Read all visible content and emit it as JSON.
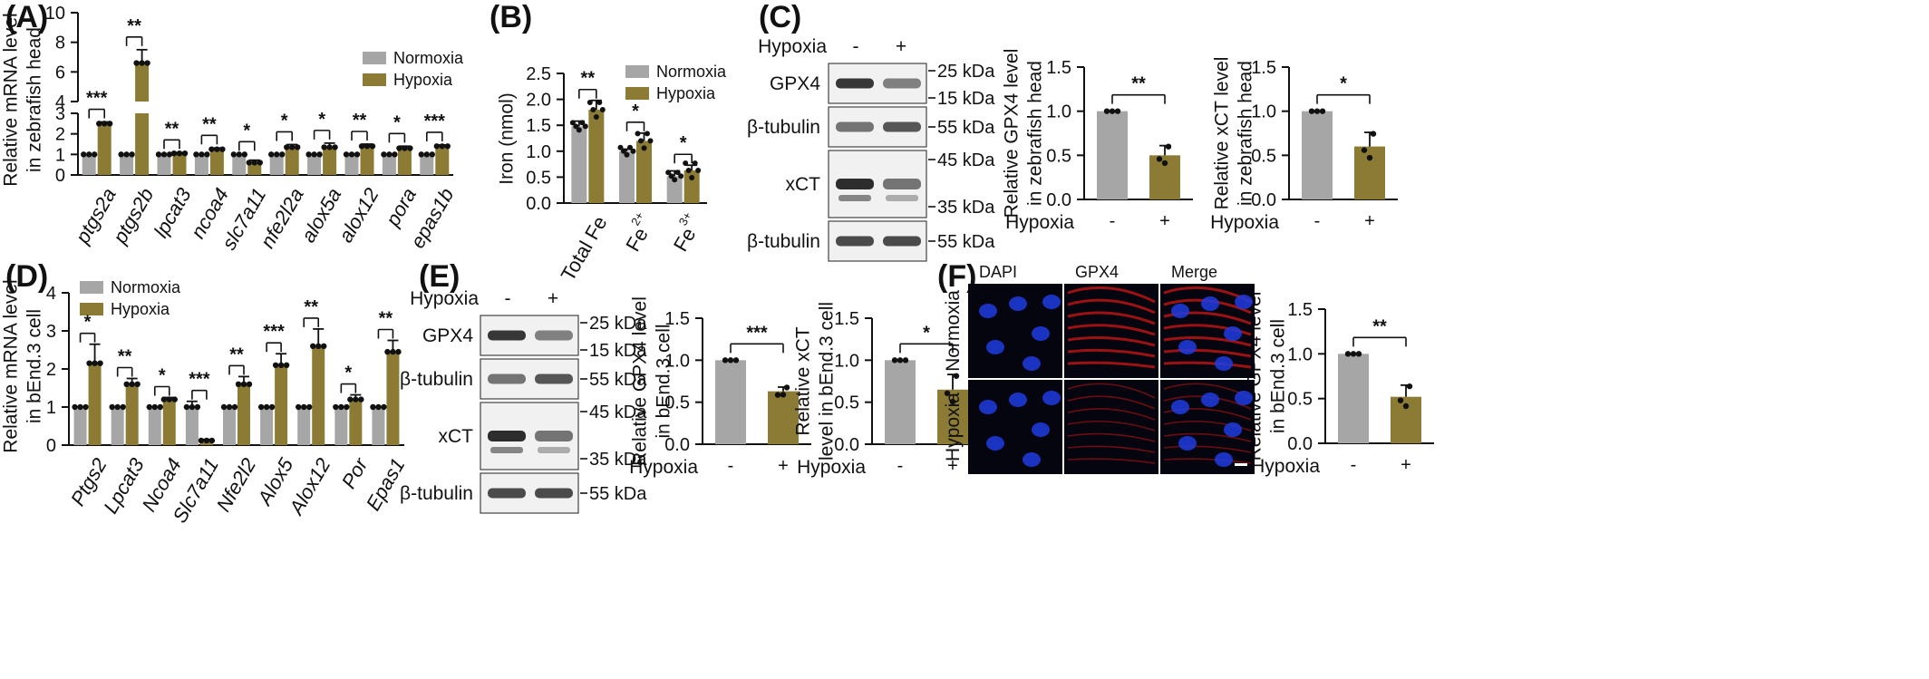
{
  "colors": {
    "normoxia": "#a6a6a6",
    "hypoxia": "#8c7b34",
    "dapi": "#1e5fd6",
    "gpx4": "#e01818",
    "merge": "#111111"
  },
  "chart_data": [
    {
      "id": "A",
      "type": "bar",
      "panel": "(A)",
      "ylabel": [
        "Relative mRNA level",
        "in zebrafish head"
      ],
      "axis_break": {
        "lower": [
          0,
          3
        ],
        "upper": [
          4,
          10
        ]
      },
      "lower_ticks": [
        "0",
        "1",
        "2",
        "3"
      ],
      "upper_ticks": [
        "4",
        "6",
        "8",
        "10"
      ],
      "categories": [
        "ptgs2a",
        "ptgs2b",
        "lpcat3",
        "ncoa4",
        "slc7a11",
        "nfe2l2a",
        "alox5a",
        "alox12",
        "pora",
        "epas1b"
      ],
      "series": [
        {
          "name": "Normoxia",
          "values": [
            1,
            1,
            1,
            1,
            1,
            1,
            1,
            1,
            1,
            1
          ],
          "errors": [
            0,
            0,
            0,
            0,
            0,
            0,
            0,
            0,
            0,
            0
          ]
        },
        {
          "name": "Hypoxia",
          "values": [
            2.5,
            6.6,
            1.05,
            1.25,
            0.6,
            1.35,
            1.35,
            1.4,
            1.3,
            1.4
          ],
          "errors": [
            0.08,
            0.9,
            0.04,
            0.06,
            0.12,
            0.13,
            0.2,
            0.1,
            0.1,
            0.06
          ]
        }
      ],
      "significance": [
        "***",
        "**",
        "**",
        "**",
        "*",
        "*",
        "*",
        "**",
        "*",
        "***"
      ],
      "legend": [
        "Normoxia",
        "Hypoxia"
      ]
    },
    {
      "id": "B",
      "type": "bar",
      "panel": "(B)",
      "ylabel": "Iron (nmol)",
      "ylim": [
        0,
        2.5
      ],
      "ticks": [
        "0.0",
        "0.5",
        "1.0",
        "1.5",
        "2.0",
        "2.5"
      ],
      "categories": [
        "Total Fe",
        "Fe2+",
        "Fe3+"
      ],
      "category_labels": [
        {
          "base": "Total Fe",
          "sup": ""
        },
        {
          "base": "Fe",
          "sup": "2+"
        },
        {
          "base": "Fe",
          "sup": "3+"
        }
      ],
      "series": [
        {
          "name": "Normoxia",
          "values": [
            1.48,
            1.0,
            0.52
          ],
          "errors": [
            0.1,
            0.04,
            0.1
          ]
        },
        {
          "name": "Hypoxia",
          "values": [
            1.8,
            1.2,
            0.63
          ],
          "errors": [
            0.18,
            0.15,
            0.1
          ]
        }
      ],
      "significance": [
        "**",
        "*",
        "*"
      ],
      "legend": [
        "Normoxia",
        "Hypoxia"
      ]
    },
    {
      "id": "C1",
      "type": "bar",
      "panel": "(C)",
      "ylabel": [
        "Relative GPX4 level",
        "in zebrafish head"
      ],
      "ylim": [
        0,
        1.5
      ],
      "ticks": [
        "0.0",
        "0.5",
        "1.0",
        "1.5"
      ],
      "categories": [
        "-",
        "+"
      ],
      "xlabel": "Hypoxia",
      "values": [
        1.0,
        0.5
      ],
      "errors": [
        0,
        0.11
      ],
      "significance": "**"
    },
    {
      "id": "C2",
      "type": "bar",
      "ylabel": [
        "Relative xCT level",
        "in zebrafish head"
      ],
      "ylim": [
        0,
        1.5
      ],
      "ticks": [
        "0.0",
        "0.5",
        "1.0",
        "1.5"
      ],
      "categories": [
        "-",
        "+"
      ],
      "xlabel": "Hypoxia",
      "values": [
        1.0,
        0.6
      ],
      "errors": [
        0,
        0.16
      ],
      "significance": "*"
    },
    {
      "id": "D",
      "type": "bar",
      "panel": "(D)",
      "ylabel": [
        "Relative mRNA level",
        "in bEnd.3 cell"
      ],
      "ylim": [
        0,
        4
      ],
      "ticks": [
        "0",
        "1",
        "2",
        "3",
        "4"
      ],
      "categories": [
        "Ptgs2",
        "Lpcat3",
        "Ncoa4",
        "Slc7a11",
        "Nfe2l2",
        "Alox5",
        "Alox12",
        "Por",
        "Epas1"
      ],
      "series": [
        {
          "name": "Normoxia",
          "values": [
            1,
            1,
            1,
            1,
            1,
            1,
            1,
            1,
            1
          ],
          "errors": [
            0.02,
            0.02,
            0.02,
            0.15,
            0.02,
            0.02,
            0.04,
            0.02,
            0.02
          ]
        },
        {
          "name": "Hypoxia",
          "values": [
            2.15,
            1.6,
            1.2,
            0.12,
            1.6,
            2.1,
            2.6,
            1.2,
            2.45
          ],
          "errors": [
            0.5,
            0.15,
            0.05,
            0.03,
            0.2,
            0.3,
            0.45,
            0.12,
            0.3
          ]
        }
      ],
      "significance": [
        "*",
        "**",
        "*",
        "***",
        "**",
        "***",
        "**",
        "*",
        "**"
      ],
      "legend": [
        "Normoxia",
        "Hypoxia"
      ]
    },
    {
      "id": "E1",
      "type": "bar",
      "panel": "(E)",
      "ylabel": [
        "Relative GPX4 level",
        "in bEnd.3 cell"
      ],
      "ylim": [
        0,
        1.5
      ],
      "ticks": [
        "0.0",
        "0.5",
        "1.0",
        "1.5"
      ],
      "categories": [
        "-",
        "+"
      ],
      "xlabel": "Hypoxia",
      "values": [
        1.0,
        0.63
      ],
      "errors": [
        0,
        0.05
      ],
      "significance": "***"
    },
    {
      "id": "E2",
      "type": "bar",
      "ylabel": [
        "Relative xCT",
        "level in bEnd.3 cell"
      ],
      "ylim": [
        0,
        1.5
      ],
      "ticks": [
        "0.0",
        "0.5",
        "1.0",
        "1.5"
      ],
      "categories": [
        "-",
        "+"
      ],
      "xlabel": "Hypoxia",
      "values": [
        1.0,
        0.65
      ],
      "errors": [
        0,
        0.18
      ],
      "significance": "*"
    },
    {
      "id": "F1",
      "type": "bar",
      "panel": "(F)",
      "ylabel": [
        "Relative GPX4 level",
        "in bEnd.3 cell"
      ],
      "ylim": [
        0,
        1.5
      ],
      "ticks": [
        "0.0",
        "0.5",
        "1.0",
        "1.5"
      ],
      "categories": [
        "-",
        "+"
      ],
      "xlabel": "Hypoxia",
      "values": [
        1.0,
        0.52
      ],
      "errors": [
        0,
        0.13
      ],
      "significance": "**"
    }
  ],
  "blots": {
    "C": {
      "hypoxia_label": "Hypoxia",
      "minus": "-",
      "plus": "+",
      "rows": [
        "GPX4",
        "β-tubulin",
        "xCT",
        "β-tubulin"
      ],
      "markers": [
        "25 kDa",
        "15 kDa",
        "55 kDa",
        "45 kDa",
        "35 kDa",
        "55 kDa"
      ]
    },
    "E": {
      "hypoxia_label": "Hypoxia",
      "minus": "-",
      "plus": "+",
      "rows": [
        "GPX4",
        "β-tubulin",
        "xCT",
        "β-tubulin"
      ],
      "markers": [
        "25 kDa",
        "15 kDa",
        "55 kDa",
        "45 kDa",
        "35 kDa",
        "55 kDa"
      ]
    }
  },
  "micrograph": {
    "columns": [
      "DAPI",
      "GPX4",
      "Merge"
    ],
    "rows": [
      "Normoxia",
      "Hypoxia"
    ]
  }
}
